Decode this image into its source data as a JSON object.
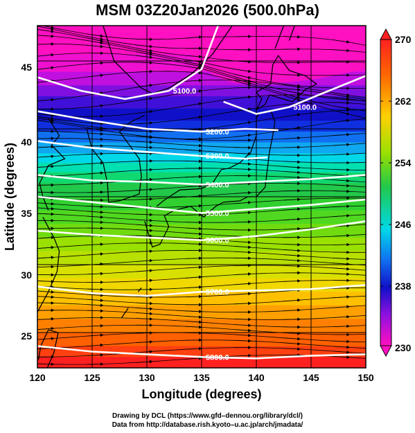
{
  "title": "MSM 03Z20Jan2026 (500.0hPa)",
  "x_axis": {
    "label": "Longitude (degrees)",
    "range": [
      120,
      150
    ],
    "ticks": [
      "120",
      "125",
      "130",
      "135",
      "140",
      "145",
      "150"
    ]
  },
  "y_axis": {
    "label": "Latitude  (degrees)",
    "range": [
      22.4,
      47.6
    ],
    "ticks": [
      "25",
      "30",
      "35",
      "40",
      "45"
    ]
  },
  "colorbar": {
    "range": [
      230,
      270
    ],
    "ticks": [
      "270",
      "262",
      "254",
      "246",
      "238",
      "230"
    ],
    "scale": "rainbow (magenta low, red high)"
  },
  "contours": [
    {
      "label": "5100.0",
      "lat_at_lon": [
        [
          120,
          43.8
        ],
        [
          124,
          42.8
        ],
        [
          128,
          42.2
        ],
        [
          132,
          42.8
        ],
        [
          135,
          44.4
        ],
        [
          136.5,
          47.6
        ]
      ]
    },
    {
      "label": "5100.0",
      "lat_at_lon": [
        [
          137,
          42.0
        ],
        [
          140,
          41.1
        ],
        [
          143,
          41.6
        ],
        [
          146,
          42.6
        ],
        [
          150,
          43.9
        ]
      ]
    },
    {
      "label": "5200.0",
      "lat_at_lon": [
        [
          120,
          41.3
        ],
        [
          125,
          40.6
        ],
        [
          130,
          40.0
        ],
        [
          135,
          39.8
        ],
        [
          139,
          40.0
        ],
        [
          142,
          39.9
        ]
      ]
    },
    {
      "label": "5300.0",
      "lat_at_lon": [
        [
          120,
          39.1
        ],
        [
          125,
          38.6
        ],
        [
          130,
          38.3
        ],
        [
          135,
          38.0
        ],
        [
          139,
          37.8
        ],
        [
          141,
          37.9
        ]
      ]
    },
    {
      "label": "5400.0",
      "lat_at_lon": [
        [
          120,
          36.6
        ],
        [
          125,
          36.2
        ],
        [
          130,
          36.1
        ],
        [
          135,
          35.9
        ],
        [
          140,
          36.1
        ],
        [
          145,
          36.3
        ],
        [
          150,
          36.6
        ]
      ]
    },
    {
      "label": "5500.0",
      "lat_at_lon": [
        [
          120,
          35.0
        ],
        [
          125,
          34.6
        ],
        [
          130,
          34.2
        ],
        [
          135,
          33.8
        ],
        [
          140,
          34.1
        ],
        [
          145,
          34.4
        ],
        [
          150,
          34.8
        ]
      ]
    },
    {
      "label": "5600.0",
      "lat_at_lon": [
        [
          120,
          32.5
        ],
        [
          125,
          32.2
        ],
        [
          130,
          32.0
        ],
        [
          135,
          31.8
        ],
        [
          140,
          32.1
        ],
        [
          145,
          32.6
        ],
        [
          150,
          33.2
        ]
      ]
    },
    {
      "label": "5700.0",
      "lat_at_lon": [
        [
          120,
          28.4
        ],
        [
          125,
          27.9
        ],
        [
          130,
          27.7
        ],
        [
          135,
          28.0
        ],
        [
          140,
          28.1
        ],
        [
          145,
          28.2
        ],
        [
          150,
          28.5
        ]
      ]
    },
    {
      "label": "5800.0",
      "lat_at_lon": [
        [
          120,
          24.0
        ],
        [
          125,
          23.6
        ],
        [
          130,
          23.4
        ],
        [
          135,
          23.2
        ],
        [
          140,
          23.1
        ],
        [
          145,
          23.3
        ],
        [
          150,
          23.4
        ]
      ]
    }
  ],
  "credit_line1": "Drawing by DCL (https://www.gfd–dennou.org/library/dcl/)",
  "credit_line2": "Data from http://database.rish.kyoto–u.ac.jp/arch/jmadata/"
}
